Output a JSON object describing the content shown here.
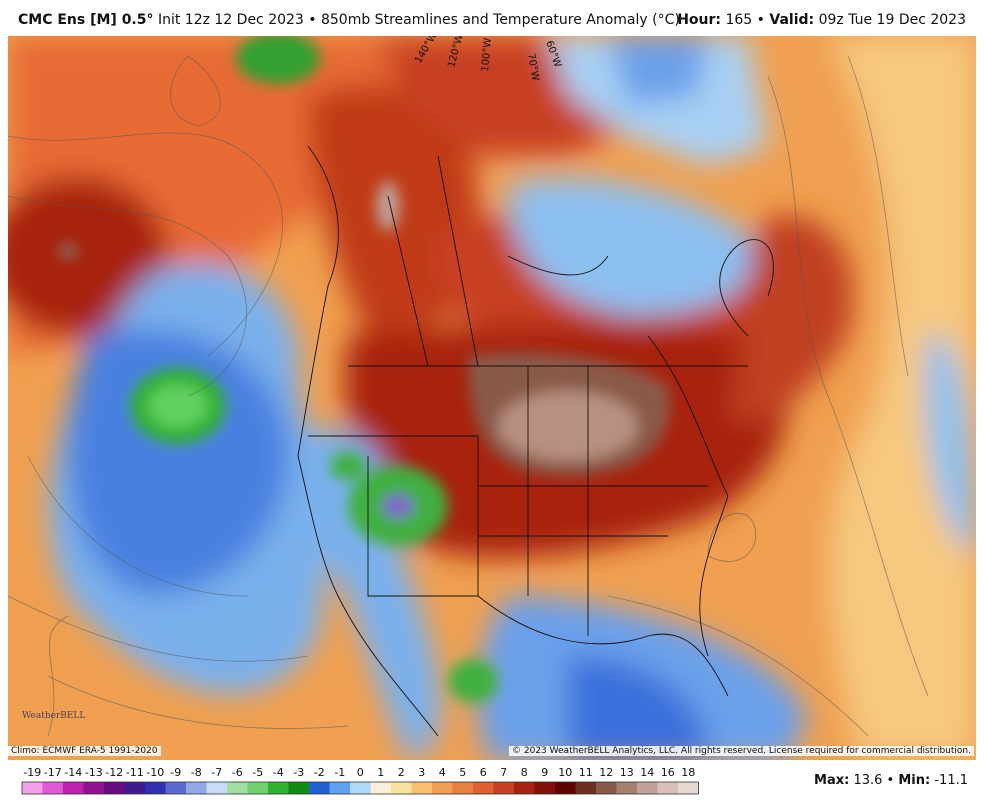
{
  "header": {
    "model": "CMC Ens [M] 0.5°",
    "title": "Init 12z 12 Dec 2023 • 850mb Streamlines and Temperature Anomaly (°C)",
    "hour_label": "Hour:",
    "hour_value": "165",
    "separator": "•",
    "valid_label": "Valid:",
    "valid_value": "09z Tue 19 Dec 2023"
  },
  "map": {
    "longitudes": [
      "140°W",
      "120°W",
      "100°W",
      "70°W",
      "60°W"
    ],
    "logo": "WeatherBELL"
  },
  "footer": {
    "climo": "Climo: ECMWF ERA-5 1991-2020",
    "copyright": "© 2023 WeatherBELL Analytics, LLC. All rights reserved. License required for commercial distribution.",
    "max_label": "Max:",
    "max": 13.6,
    "separator": "•",
    "min_label": "Min:",
    "min": -11.1
  },
  "colorbar": {
    "ticks": [
      -19,
      -17,
      -14,
      -13,
      -12,
      -11,
      -10,
      -9,
      -8,
      -7,
      -6,
      -5,
      -4,
      -3,
      -2,
      -1,
      0,
      1,
      2,
      3,
      4,
      5,
      6,
      7,
      8,
      9,
      10,
      11,
      12,
      13,
      14,
      16,
      18
    ],
    "colors": [
      "#f5a0e8",
      "#e05ad8",
      "#c020b0",
      "#901090",
      "#6a0a80",
      "#401890",
      "#3030b0",
      "#5a6ad0",
      "#90a8e8",
      "#c8dcf5",
      "#a0e0a0",
      "#70d070",
      "#30b030",
      "#108a10",
      "#2060d0",
      "#60a0f0",
      "#b0d8f8",
      "#f8f0d8",
      "#f8e0a0",
      "#f8c070",
      "#f0a050",
      "#e88040",
      "#e06030",
      "#c84020",
      "#a82010",
      "#801008",
      "#600000",
      "#6a3020",
      "#8a5a48",
      "#a88070",
      "#c0a098",
      "#d8c0b8",
      "#e8d8d0"
    ]
  }
}
